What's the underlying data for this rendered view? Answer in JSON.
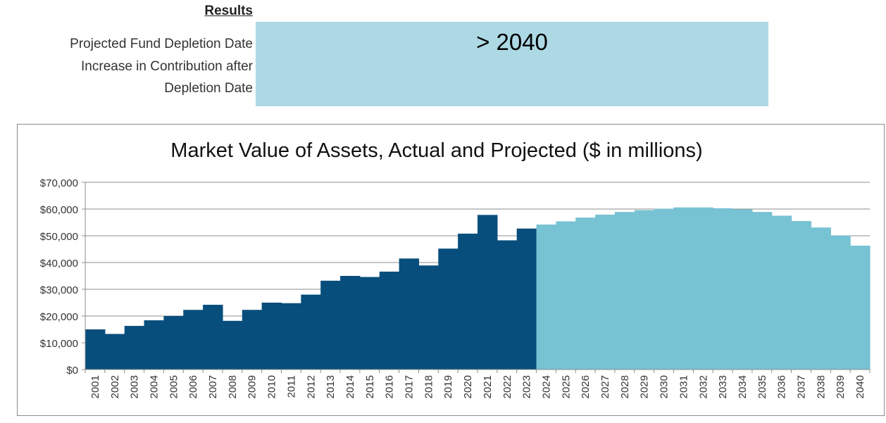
{
  "results": {
    "header": "Results",
    "depletion_label": "Projected Fund Depletion Date",
    "increase_label_line1": "Increase in Contribution after",
    "increase_label_line2": "Depletion Date",
    "depletion_value": "> 2040",
    "box_color": "#add9e5"
  },
  "chart_data": {
    "type": "bar",
    "title": "Market Value of Assets, Actual and Projected ($ in millions)",
    "xlabel": "",
    "ylabel": "",
    "ylim": [
      0,
      70000
    ],
    "y_ticks": [
      "$0",
      "$10,000",
      "$20,000",
      "$30,000",
      "$40,000",
      "$50,000",
      "$60,000",
      "$70,000"
    ],
    "grid": true,
    "legend": "none",
    "categories": [
      "2001",
      "2002",
      "2003",
      "2004",
      "2005",
      "2006",
      "2007",
      "2008",
      "2009",
      "2010",
      "2011",
      "2012",
      "2013",
      "2014",
      "2015",
      "2016",
      "2017",
      "2018",
      "2019",
      "2020",
      "2021",
      "2022",
      "2023",
      "2024",
      "2025",
      "2026",
      "2027",
      "2028",
      "2029",
      "2030",
      "2031",
      "2032",
      "2033",
      "2034",
      "2035",
      "2036",
      "2037",
      "2038",
      "2039",
      "2040"
    ],
    "series": [
      {
        "color": "#074e7c",
        "values": [
          15000,
          13300,
          16300,
          18400,
          20000,
          22300,
          24200,
          18200,
          22300,
          25000,
          24800,
          28000,
          33200,
          35000,
          34600,
          36600,
          41500,
          38900,
          45200,
          50800,
          57800,
          48300,
          52700,
          null,
          null,
          null,
          null,
          null,
          null,
          null,
          null,
          null,
          null,
          null,
          null,
          null,
          null,
          null,
          null,
          null
        ]
      },
      {
        "color": "#77c2d3",
        "values": [
          null,
          null,
          null,
          null,
          null,
          null,
          null,
          null,
          null,
          null,
          null,
          null,
          null,
          null,
          null,
          null,
          null,
          null,
          null,
          null,
          null,
          null,
          null,
          54200,
          55400,
          56800,
          57900,
          58900,
          59600,
          60100,
          60600,
          60600,
          60300,
          59900,
          58900,
          57500,
          55500,
          53100,
          50100,
          46300
        ]
      }
    ]
  }
}
